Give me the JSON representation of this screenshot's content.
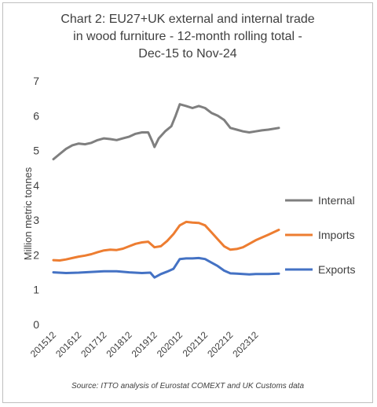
{
  "chart_data": {
    "type": "line",
    "title_lines": [
      "Chart 2: EU27+UK external and internal trade",
      "in wood furniture - 12-month rolling total  -",
      "Dec-15 to Nov-24"
    ],
    "ylabel": "Million metric tonnes",
    "xlabel": "",
    "ylim": [
      0,
      7
    ],
    "yticks": [
      0,
      1,
      2,
      3,
      4,
      5,
      6,
      7
    ],
    "x_start": "2015-12",
    "x_end": "2024-11",
    "x_tick_labels": [
      "201512",
      "201612",
      "201712",
      "201812",
      "201912",
      "202012",
      "202112",
      "202212",
      "202312"
    ],
    "legend_position": "right",
    "grid": false,
    "series": [
      {
        "name": "Internal",
        "color": "#7f7f7f",
        "points": [
          [
            "2015-12",
            4.75
          ],
          [
            "2016-03",
            4.9
          ],
          [
            "2016-06",
            5.05
          ],
          [
            "2016-09",
            5.15
          ],
          [
            "2016-12",
            5.2
          ],
          [
            "2017-03",
            5.18
          ],
          [
            "2017-06",
            5.22
          ],
          [
            "2017-09",
            5.3
          ],
          [
            "2017-12",
            5.35
          ],
          [
            "2018-03",
            5.33
          ],
          [
            "2018-06",
            5.3
          ],
          [
            "2018-09",
            5.35
          ],
          [
            "2018-12",
            5.4
          ],
          [
            "2019-03",
            5.48
          ],
          [
            "2019-06",
            5.52
          ],
          [
            "2019-09",
            5.52
          ],
          [
            "2019-11",
            5.25
          ],
          [
            "2019-12",
            5.1
          ],
          [
            "2020-02",
            5.35
          ],
          [
            "2020-05",
            5.55
          ],
          [
            "2020-08",
            5.7
          ],
          [
            "2020-10",
            6.0
          ],
          [
            "2020-12",
            6.33
          ],
          [
            "2021-03",
            6.28
          ],
          [
            "2021-06",
            6.22
          ],
          [
            "2021-09",
            6.28
          ],
          [
            "2021-12",
            6.22
          ],
          [
            "2022-03",
            6.08
          ],
          [
            "2022-06",
            6.0
          ],
          [
            "2022-09",
            5.88
          ],
          [
            "2022-12",
            5.65
          ],
          [
            "2023-03",
            5.6
          ],
          [
            "2023-06",
            5.55
          ],
          [
            "2023-09",
            5.52
          ],
          [
            "2023-12",
            5.55
          ],
          [
            "2024-03",
            5.58
          ],
          [
            "2024-06",
            5.6
          ],
          [
            "2024-11",
            5.65
          ]
        ]
      },
      {
        "name": "Imports",
        "color": "#ed7d31",
        "points": [
          [
            "2015-12",
            1.85
          ],
          [
            "2016-03",
            1.84
          ],
          [
            "2016-06",
            1.87
          ],
          [
            "2016-09",
            1.91
          ],
          [
            "2016-12",
            1.95
          ],
          [
            "2017-03",
            1.98
          ],
          [
            "2017-06",
            2.02
          ],
          [
            "2017-09",
            2.08
          ],
          [
            "2017-12",
            2.13
          ],
          [
            "2018-03",
            2.15
          ],
          [
            "2018-06",
            2.14
          ],
          [
            "2018-09",
            2.18
          ],
          [
            "2018-12",
            2.25
          ],
          [
            "2019-03",
            2.32
          ],
          [
            "2019-06",
            2.36
          ],
          [
            "2019-09",
            2.38
          ],
          [
            "2019-12",
            2.22
          ],
          [
            "2020-03",
            2.25
          ],
          [
            "2020-06",
            2.4
          ],
          [
            "2020-09",
            2.6
          ],
          [
            "2020-12",
            2.85
          ],
          [
            "2021-03",
            2.95
          ],
          [
            "2021-06",
            2.93
          ],
          [
            "2021-09",
            2.92
          ],
          [
            "2021-12",
            2.85
          ],
          [
            "2022-03",
            2.65
          ],
          [
            "2022-06",
            2.45
          ],
          [
            "2022-09",
            2.25
          ],
          [
            "2022-12",
            2.15
          ],
          [
            "2023-03",
            2.17
          ],
          [
            "2023-06",
            2.22
          ],
          [
            "2023-09",
            2.32
          ],
          [
            "2023-12",
            2.42
          ],
          [
            "2024-03",
            2.5
          ],
          [
            "2024-06",
            2.58
          ],
          [
            "2024-11",
            2.72
          ]
        ]
      },
      {
        "name": "Exports",
        "color": "#4472c4",
        "points": [
          [
            "2015-12",
            1.5
          ],
          [
            "2016-06",
            1.48
          ],
          [
            "2016-12",
            1.49
          ],
          [
            "2017-06",
            1.51
          ],
          [
            "2017-12",
            1.53
          ],
          [
            "2018-06",
            1.53
          ],
          [
            "2018-12",
            1.5
          ],
          [
            "2019-06",
            1.48
          ],
          [
            "2019-10",
            1.49
          ],
          [
            "2019-12",
            1.35
          ],
          [
            "2020-03",
            1.45
          ],
          [
            "2020-06",
            1.52
          ],
          [
            "2020-09",
            1.6
          ],
          [
            "2020-12",
            1.88
          ],
          [
            "2021-03",
            1.9
          ],
          [
            "2021-06",
            1.9
          ],
          [
            "2021-09",
            1.91
          ],
          [
            "2021-12",
            1.88
          ],
          [
            "2022-03",
            1.78
          ],
          [
            "2022-06",
            1.68
          ],
          [
            "2022-09",
            1.55
          ],
          [
            "2022-12",
            1.47
          ],
          [
            "2023-03",
            1.46
          ],
          [
            "2023-06",
            1.45
          ],
          [
            "2023-09",
            1.44
          ],
          [
            "2023-12",
            1.45
          ],
          [
            "2024-03",
            1.45
          ],
          [
            "2024-06",
            1.45
          ],
          [
            "2024-11",
            1.46
          ]
        ]
      }
    ]
  },
  "source_note": "Source: ITTO analysis of Eurostat COMEXT and UK Customs data"
}
